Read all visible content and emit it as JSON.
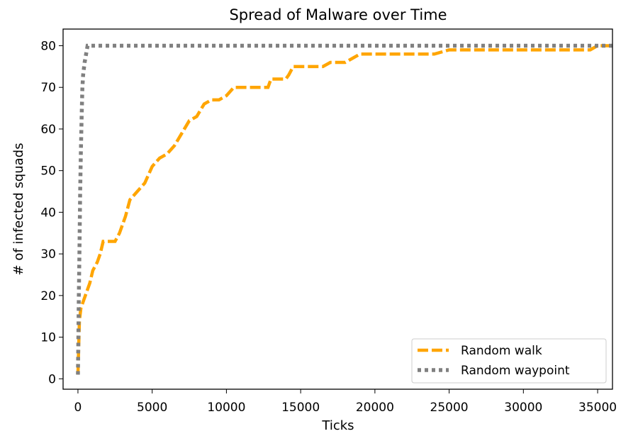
{
  "chart_data": {
    "type": "line",
    "title": "Spread of Malware over Time",
    "xlabel": "Ticks",
    "ylabel": "# of infected squads",
    "xlim": [
      -1000,
      36000
    ],
    "ylim": [
      -2.5,
      84
    ],
    "xticks": [
      0,
      5000,
      10000,
      15000,
      20000,
      25000,
      30000,
      35000
    ],
    "yticks": [
      0,
      10,
      20,
      30,
      40,
      50,
      60,
      70,
      80
    ],
    "legend": "bottom-right",
    "grid": false,
    "series": [
      {
        "name": "Random walk",
        "color": "#ffa500",
        "style": "dashed",
        "points": [
          [
            0,
            1
          ],
          [
            100,
            14
          ],
          [
            200,
            17
          ],
          [
            400,
            19
          ],
          [
            600,
            21
          ],
          [
            800,
            23
          ],
          [
            1000,
            26
          ],
          [
            1300,
            28
          ],
          [
            1500,
            30
          ],
          [
            1700,
            33
          ],
          [
            2000,
            33
          ],
          [
            2500,
            33
          ],
          [
            2800,
            35
          ],
          [
            3200,
            39
          ],
          [
            3500,
            43
          ],
          [
            4000,
            45
          ],
          [
            4500,
            47
          ],
          [
            5000,
            51
          ],
          [
            5500,
            53
          ],
          [
            6000,
            54
          ],
          [
            6500,
            56
          ],
          [
            7000,
            59
          ],
          [
            7500,
            62
          ],
          [
            8000,
            63
          ],
          [
            8500,
            66
          ],
          [
            9000,
            67
          ],
          [
            9500,
            67
          ],
          [
            10000,
            68
          ],
          [
            10500,
            70
          ],
          [
            11000,
            70
          ],
          [
            12000,
            70
          ],
          [
            12800,
            70
          ],
          [
            13000,
            72
          ],
          [
            14000,
            72
          ],
          [
            14200,
            73
          ],
          [
            14500,
            75
          ],
          [
            15000,
            75
          ],
          [
            16000,
            75
          ],
          [
            16500,
            75
          ],
          [
            17000,
            76
          ],
          [
            18000,
            76
          ],
          [
            18500,
            77
          ],
          [
            19000,
            78
          ],
          [
            20000,
            78
          ],
          [
            22000,
            78
          ],
          [
            24000,
            78
          ],
          [
            25000,
            79
          ],
          [
            28000,
            79
          ],
          [
            30000,
            79
          ],
          [
            32000,
            79
          ],
          [
            34500,
            79
          ],
          [
            35000,
            80
          ],
          [
            36000,
            80
          ]
        ]
      },
      {
        "name": "Random waypoint",
        "color": "#808080",
        "style": "dotted",
        "points": [
          [
            0,
            1
          ],
          [
            30,
            10
          ],
          [
            60,
            20
          ],
          [
            100,
            30
          ],
          [
            150,
            45
          ],
          [
            200,
            55
          ],
          [
            250,
            63
          ],
          [
            300,
            70
          ],
          [
            350,
            73
          ],
          [
            450,
            76
          ],
          [
            550,
            78
          ],
          [
            650,
            80
          ],
          [
            1000,
            80
          ],
          [
            5000,
            80
          ],
          [
            10000,
            80
          ],
          [
            20000,
            80
          ],
          [
            30000,
            80
          ],
          [
            36000,
            80
          ]
        ]
      }
    ]
  }
}
